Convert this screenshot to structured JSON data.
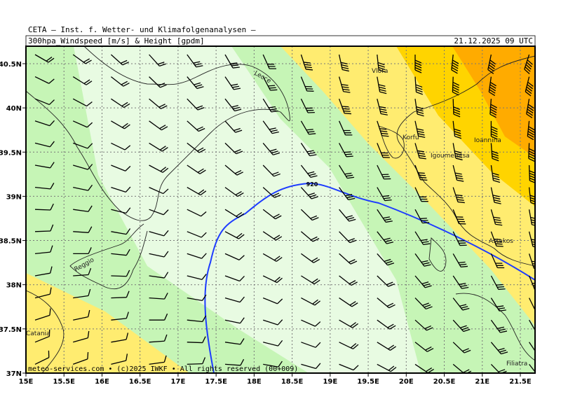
{
  "header": {
    "line1": "CETA — Inst. f. Wetter- und Klimafolgenanalysen —",
    "line2": "300hpa_Windspeed [m/s] & Height [gpdm]",
    "datetime": "21.12.2025 09 UTC"
  },
  "map": {
    "lon_labels": [
      "15E",
      "15.5E",
      "16E",
      "16.5E",
      "17E",
      "17.5E",
      "18E",
      "18.5E",
      "19E",
      "19.5E",
      "20E",
      "20.5E",
      "21E",
      "21.5E"
    ],
    "lat_labels": [
      "40.5N",
      "40N",
      "39.5N",
      "39N",
      "38.5N",
      "38N",
      "37.5N",
      "37N"
    ],
    "places": [
      "Lecce",
      "Vlora",
      "Korfu",
      "Ioannina",
      "Igoumenitsa",
      "Astakos",
      "Reggio",
      "Catania",
      "Filiatra"
    ],
    "contour_label": "920",
    "credit": "meteo-services.com • (c)2025 IWKF • All rights reserved (00+009)"
  }
}
